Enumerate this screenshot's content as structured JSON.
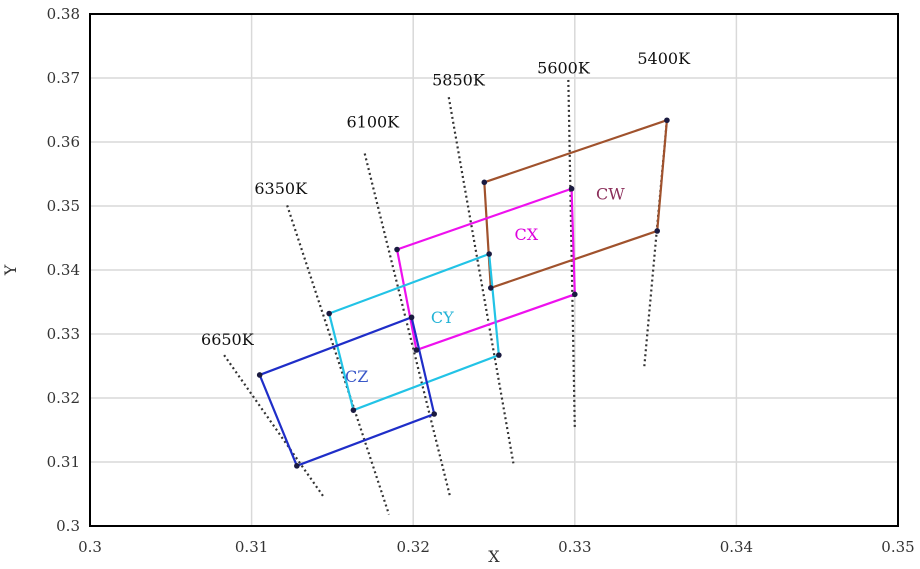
{
  "chart_data": {
    "type": "scatter",
    "xlabel": "X",
    "ylabel": "Y",
    "xlim": [
      0.3,
      0.35
    ],
    "ylim": [
      0.3,
      0.38
    ],
    "grid": true,
    "x_ticks": [
      "0.3",
      "0.31",
      "0.32",
      "0.33",
      "0.34",
      "0.35"
    ],
    "y_ticks": [
      "0.3",
      "0.31",
      "0.32",
      "0.33",
      "0.34",
      "0.35",
      "0.36",
      "0.37",
      "0.38"
    ],
    "isotherms": [
      {
        "label": "6650K",
        "x": [
          0.3083,
          0.3145
        ],
        "y": [
          0.3267,
          0.3044
        ],
        "label_at": [
          0.3085,
          0.3283
        ]
      },
      {
        "label": "6350K",
        "x": [
          0.3122,
          0.3185
        ],
        "y": [
          0.3501,
          0.3018
        ],
        "label_at": [
          0.3118,
          0.3519
        ]
      },
      {
        "label": "6100K",
        "x": [
          0.317,
          0.3223
        ],
        "y": [
          0.3582,
          0.3044
        ],
        "label_at": [
          0.3175,
          0.3623
        ]
      },
      {
        "label": "5850K",
        "x": [
          0.3222,
          0.3262
        ],
        "y": [
          0.367,
          0.3098
        ],
        "label_at": [
          0.3228,
          0.3688
        ]
      },
      {
        "label": "5600K",
        "x": [
          0.3296,
          0.33
        ],
        "y": [
          0.3697,
          0.3153
        ],
        "label_at": [
          0.3293,
          0.3707
        ]
      },
      {
        "label": "5400K",
        "x": [
          0.3357,
          0.3343
        ],
        "y": [
          0.3634,
          0.3249
        ],
        "label_at": [
          0.3355,
          0.3722
        ]
      }
    ],
    "series": [
      {
        "name": "CW",
        "color": "#a0522d",
        "label_color": "#8b2e5a",
        "label_at": [
          0.3322,
          0.351
        ],
        "x": [
          0.3244,
          0.3357,
          0.3351,
          0.3248
        ],
        "y": [
          0.3537,
          0.3634,
          0.3461,
          0.3372
        ]
      },
      {
        "name": "CX",
        "color": "#ee11ee",
        "label_color": "#dd00dd",
        "label_at": [
          0.327,
          0.3447
        ],
        "x": [
          0.319,
          0.3298,
          0.33,
          0.3202
        ],
        "y": [
          0.3432,
          0.3527,
          0.3362,
          0.3275
        ]
      },
      {
        "name": "CY",
        "color": "#22c3e6",
        "label_color": "#22b3d6",
        "label_at": [
          0.3218,
          0.3317
        ],
        "x": [
          0.3148,
          0.3247,
          0.3253,
          0.3163
        ],
        "y": [
          0.3332,
          0.3425,
          0.3267,
          0.3181
        ]
      },
      {
        "name": "CZ",
        "color": "#1f2ec8",
        "label_color": "#3a58c8",
        "label_at": [
          0.3165,
          0.3225
        ],
        "x": [
          0.3105,
          0.3199,
          0.3213,
          0.3128
        ],
        "y": [
          0.3236,
          0.3326,
          0.3175,
          0.3094
        ]
      }
    ]
  }
}
